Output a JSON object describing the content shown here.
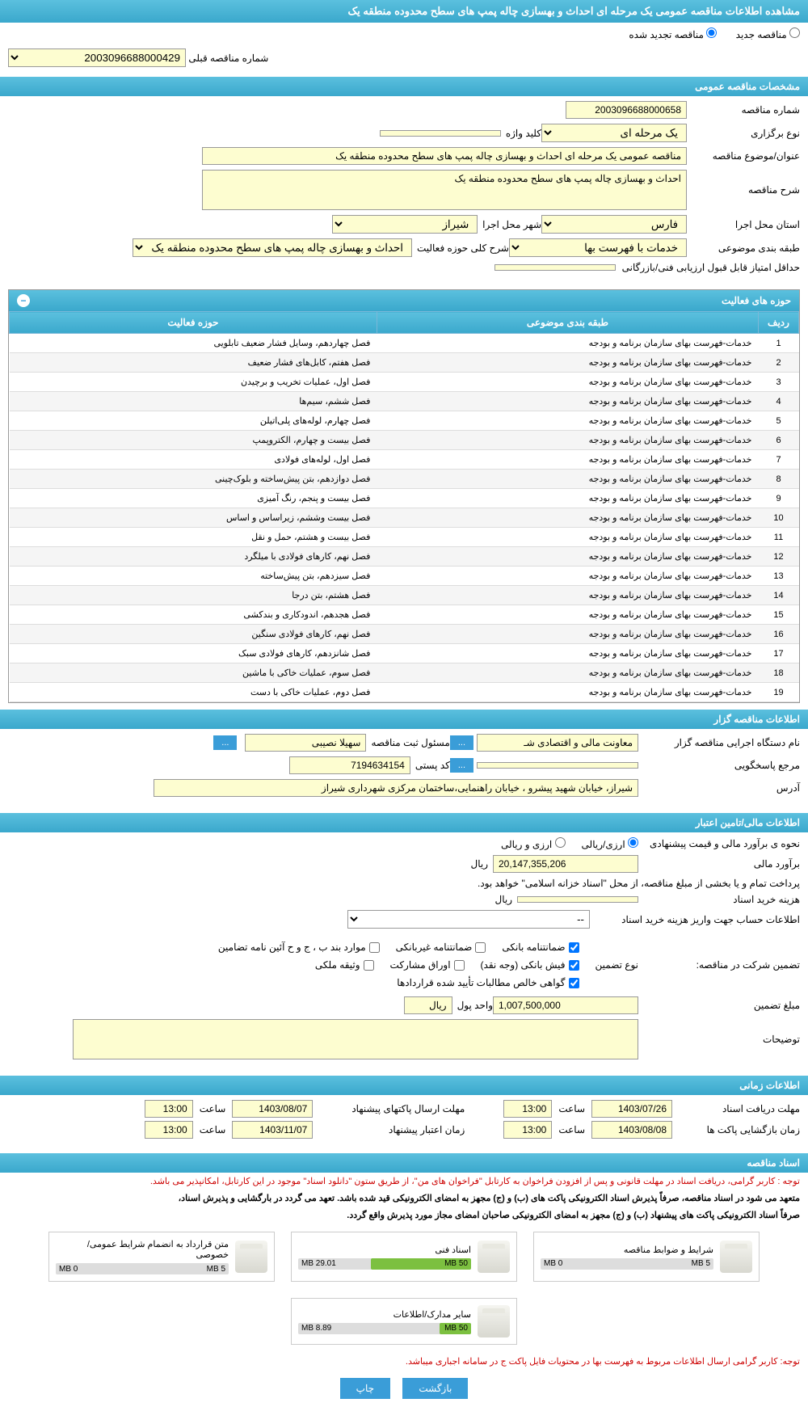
{
  "title": "مشاهده اطلاعات مناقصه عمومی یک مرحله ای احداث و بهسازی چاله پمپ های سطح محدوده منطقه یک",
  "radios": {
    "new": "مناقصه جدید",
    "renewed": "مناقصه تجدید شده"
  },
  "prev_tender": {
    "label": "شماره مناقصه قبلی",
    "value": "2003096688000429"
  },
  "sec1": {
    "header": "مشخصات مناقصه عمومی",
    "tender_no": {
      "label": "شماره مناقصه",
      "value": "2003096688000658"
    },
    "type": {
      "label": "نوع برگزاری",
      "value": "یک مرحله ای"
    },
    "keyword": {
      "label": "کلید واژه",
      "value": ""
    },
    "subject": {
      "label": "عنوان/موضوع مناقصه",
      "value": "مناقصه عمومی یک مرحله ای  احداث و بهسازی چاله پمپ های سطح محدوده منطقه یک"
    },
    "desc": {
      "label": "شرح مناقصه",
      "value": "احداث و بهسازی چاله پمپ های سطح محدوده منطقه یک"
    },
    "province": {
      "label": "استان محل اجرا",
      "value": "فارس"
    },
    "city": {
      "label": "شهر محل اجرا",
      "value": "شیراز"
    },
    "category": {
      "label": "طبقه بندی موضوعی",
      "value": "خدمات با فهرست بها"
    },
    "activity": {
      "label": "شرح کلی حوزه فعالیت",
      "value": "احداث و بهسازی چاله پمپ های سطح محدوده منطقه یک"
    },
    "min_score": {
      "label": "حداقل امتیاز قابل قبول ارزیابی فنی/بازرگانی",
      "value": ""
    }
  },
  "activities": {
    "header": "حوزه های فعالیت",
    "cols": {
      "row": "ردیف",
      "cat": "طبقه بندی موضوعی",
      "act": "حوزه فعالیت"
    },
    "common_cat": "خدمات-فهرست بهای سازمان برنامه و بودجه",
    "rows": [
      "فصل چهاردهم، وسایل فشار ضعیف تابلویی",
      "فصل هفتم، کابل‌های فشار ضعیف",
      "فصل اول، عملیات تخریب و برچیدن",
      "فصل ششم، سیم‌ها",
      "فصل چهارم، لوله‌های پلی‌اتیلن",
      "فصل بیست و چهارم، الکتروپمپ",
      "فصل اول، لوله‌های فولادی",
      "فصل دوازدهم، بتن پیش‌ساخته و بلوک‌چینی",
      "فصل بیست و پنجم، رنگ آمیزی",
      "فصل بیست وششم، زیراساس و اساس",
      "فصل بیست و هشتم، حمل و نقل",
      "فصل نهم، کارهای فولادی با میلگرد",
      "فصل سیزدهم، بتن پیش‌ساخته",
      "فصل هشتم، بتن درجا",
      "فصل هجدهم، اندودکاری و بندکشی",
      "فصل نهم، کارهای فولادی سنگین",
      "فصل شانزدهم، کارهای فولادی سبک",
      "فصل سوم، عملیات خاکی با ماشین",
      "فصل دوم، عملیات خاکی با دست"
    ]
  },
  "sec2": {
    "header": "اطلاعات مناقصه گزار",
    "org": {
      "label": "نام دستگاه اجرایی مناقصه گزار",
      "value": "معاونت مالی و اقتصادی شـ"
    },
    "reg_officer": {
      "label": "مسئول ثبت مناقصه",
      "value": "سهیلا نصیبی"
    },
    "contact": {
      "label": "مرجع پاسخگویی",
      "value": ""
    },
    "postal": {
      "label": "کد پستی",
      "value": "7194634154"
    },
    "address": {
      "label": "آدرس",
      "value": "شیراز، خیابان شهید پیشرو ، خیابان راهنمایی،ساختمان مرکزی شهرداری شیراز"
    }
  },
  "sec3": {
    "header": "اطلاعات مالی/تامین اعتبار",
    "est_method": {
      "label": "نحوه ی برآورد مالی و قیمت پیشنهادی",
      "r1": "ارزی/ریالی",
      "r2": "ارزی و ریالی"
    },
    "est": {
      "label": "برآورد مالی",
      "value": "20,147,355,206",
      "unit": "ریال"
    },
    "payment_note": "پرداخت تمام و یا بخشی از مبلغ مناقصه، از محل \"اسناد خزانه اسلامی\" خواهد بود.",
    "doc_fee": {
      "label": "هزینه خرید اسناد",
      "value": "",
      "unit": "ریال"
    },
    "acct_info": {
      "label": "اطلاعات حساب جهت واریز هزینه خرید اسناد",
      "value": "--"
    },
    "guarantee_label": "تضمین شرکت در مناقصه:",
    "guarantee_type": "نوع تضمین",
    "chk": {
      "bank_guarantee": "ضمانتنامه بانکی",
      "nonbank_guarantee": "ضمانتنامه غیربانکی",
      "clauses": "موارد بند ب ، ج و ح آئین نامه تضامین",
      "bank_receipt": "فیش بانکی (وجه نقد)",
      "securities": "اوراق مشارکت",
      "property": "وثیقه ملکی",
      "certificate": "گواهی خالص مطالبات تأیید شده قراردادها"
    },
    "guarantee_amt": {
      "label": "مبلغ تضمین",
      "value": "1,007,500,000",
      "unit_label": "واحد پول",
      "unit": "ریال"
    },
    "notes": {
      "label": "توضیحات",
      "value": ""
    }
  },
  "sec4": {
    "header": "اطلاعات زمانی",
    "doc_deadline": {
      "label": "مهلت دریافت اسناد",
      "date": "1403/07/26",
      "time_label": "ساعت",
      "time": "13:00"
    },
    "envelope_deadline": {
      "label": "مهلت ارسال پاکتهای پیشنهاد",
      "date": "1403/08/07",
      "time_label": "ساعت",
      "time": "13:00"
    },
    "opening": {
      "label": "زمان بازگشایی پاکت ها",
      "date": "1403/08/08",
      "time_label": "ساعت",
      "time": "13:00"
    },
    "validity": {
      "label": "زمان اعتبار پیشنهاد",
      "date": "1403/11/07",
      "time_label": "ساعت",
      "time": "13:00"
    }
  },
  "sec5": {
    "header": "اسناد مناقصه",
    "note1": "توجه : کاربر گرامی، دریافت اسناد در مهلت قانونی و پس از افزودن فراخوان به کارتابل \"فراخوان های من\"، از طریق ستون \"دانلود اسناد\" موجود در این کارتابل، امکانپذیر می باشد.",
    "note2": "متعهد می شود در اسناد مناقصه، صرفاً پذیرش اسناد الکترونیکی پاکت های (ب) و (ج) مجهز به امضای الکترونیکی قید شده باشد. تعهد می گردد در بارگشایی و پذیرش اسناد،",
    "note3": "صرفاً اسناد الکترونیکی پاکت های پیشنهاد (ب) و (ج) مجهز به امضای الکترونیکی صاحبان امضای مجاز مورد پذیرش واقع گردد.",
    "docs": [
      {
        "title": "شرایط و ضوابط مناقصه",
        "used": "0 MB",
        "used_pct": 0,
        "total": "5 MB"
      },
      {
        "title": "اسناد فنی",
        "used": "29.01 MB",
        "used_pct": 58,
        "total": "50 MB"
      },
      {
        "title": "متن قرارداد به انضمام شرایط عمومی/خصوصی",
        "used": "0 MB",
        "used_pct": 0,
        "total": "5 MB"
      },
      {
        "title": "سایر مدارک/اطلاعات",
        "used": "8.89 MB",
        "used_pct": 18,
        "total": "50 MB"
      }
    ],
    "note4": "توجه: کاربر گرامی ارسال اطلاعات مربوط به فهرست بها در محتویات فایل پاکت ج در سامانه اجباری میباشد."
  },
  "buttons": {
    "back": "بازگشت",
    "print": "چاپ",
    "more": "..."
  }
}
